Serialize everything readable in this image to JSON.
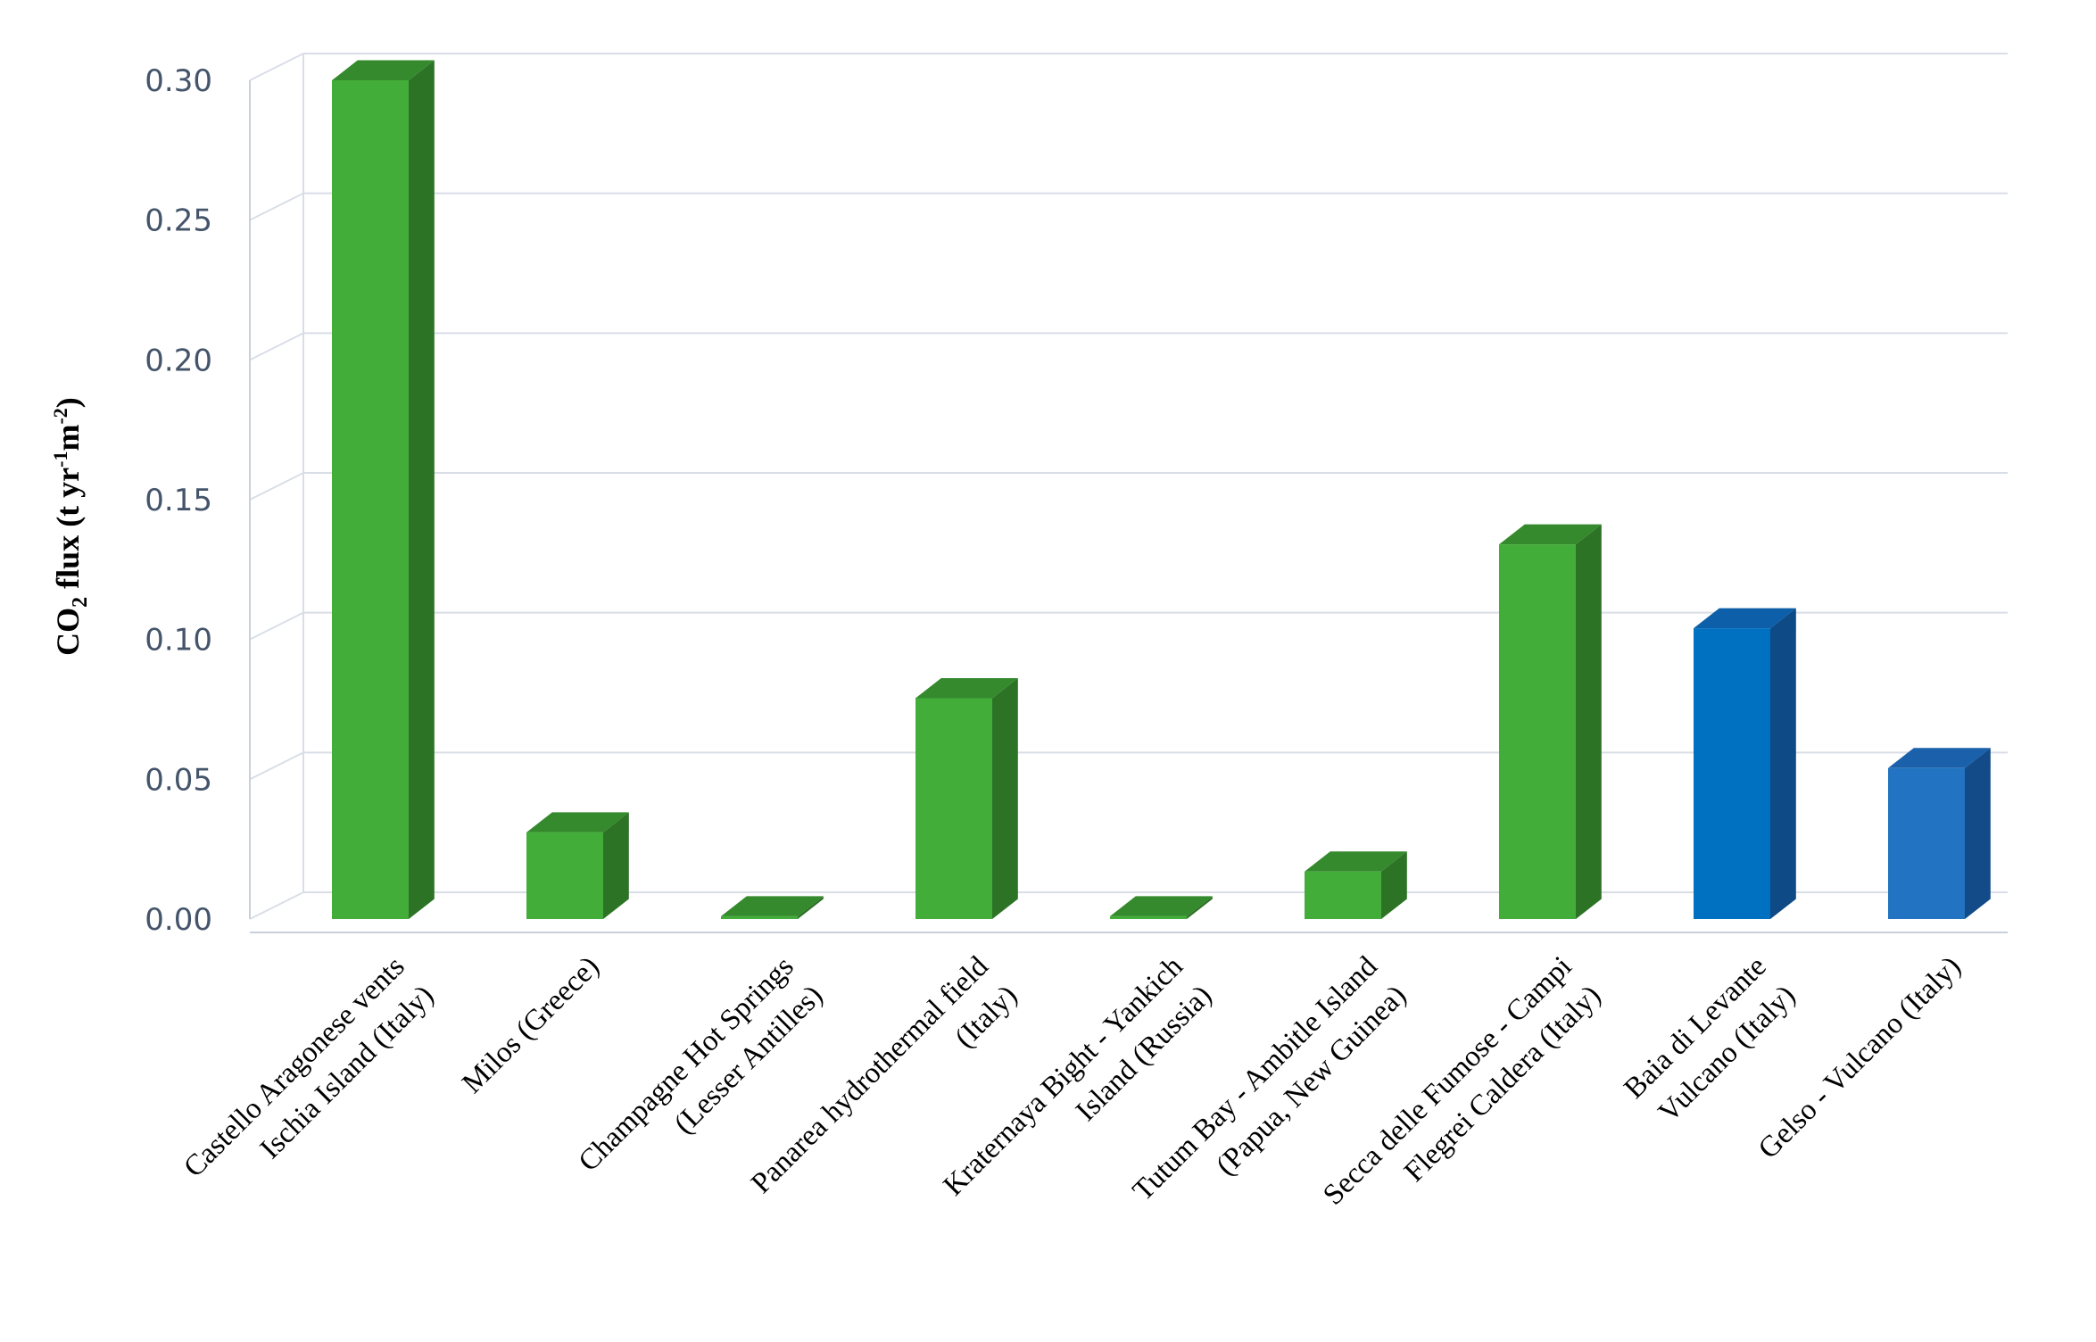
{
  "chart_data": {
    "type": "bar",
    "style": "3d-column",
    "ylabel": {
      "main": "CO",
      "subscript": "2",
      "rest": " flux (t yr",
      "sup1": "-1",
      "mid": "m",
      "sup2": "-2",
      "end": ")"
    },
    "ylim": [
      0,
      0.3
    ],
    "yticks": [
      "0.00",
      "0.05",
      "0.10",
      "0.15",
      "0.20",
      "0.25",
      "0.30"
    ],
    "ytick_values": [
      0,
      0.05,
      0.1,
      0.15,
      0.2,
      0.25,
      0.3
    ],
    "grid": true,
    "categories": [
      [
        "Castello Aragonese vents",
        "Ischia Island (Italy)"
      ],
      [
        "Milos (Greece)"
      ],
      [
        "Champagne Hot Springs",
        "(Lesser Antilles)"
      ],
      [
        "Panarea hydrothermal field",
        "(Italy)"
      ],
      [
        "Kraternaya Bight - Yankich",
        "Island (Russia)"
      ],
      [
        "Tutum Bay - Ambitle Island",
        "(Papua, New Guinea)"
      ],
      [
        "Secca delle Fumose - Campi",
        "Flegrei Caldera (Italy)"
      ],
      [
        "Baia di Levante",
        "Vulcano (Italy)"
      ],
      [
        "Gelso - Vulcano  (Italy)"
      ]
    ],
    "values": [
      0.3,
      0.031,
      0.001,
      0.079,
      0.001,
      0.017,
      0.134,
      0.104,
      0.054
    ],
    "colors": [
      "green",
      "green",
      "green",
      "green",
      "green",
      "green",
      "green",
      "blue",
      "blue-light"
    ],
    "palette": {
      "green": {
        "front": "#43ad3a",
        "side": "#2d7326",
        "top": "#348a2c"
      },
      "blue": {
        "front": "#0070c0",
        "side": "#0d4a86",
        "top": "#0c5fa8"
      },
      "blue-light": {
        "front": "#2273c1",
        "side": "#124b87",
        "top": "#1a60aa"
      },
      "grid": "#d9dee6",
      "axis": "#c9d0db"
    }
  }
}
